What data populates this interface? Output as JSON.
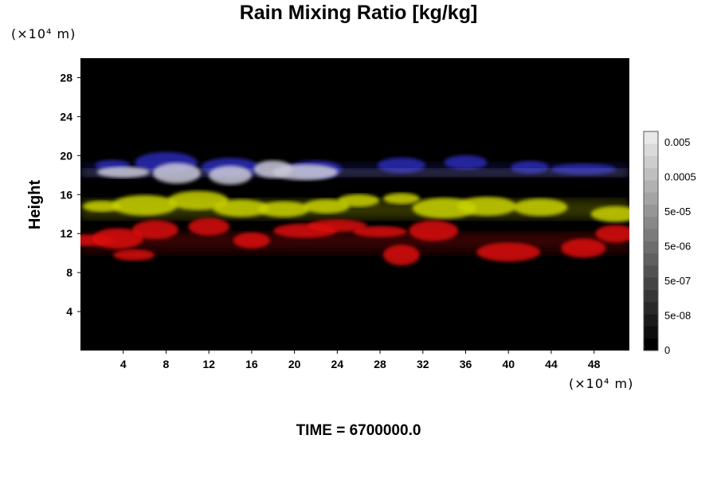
{
  "chart_data": {
    "type": "heatmap",
    "title": "Rain Mixing Ratio [kg/kg]",
    "ylabel": "Height",
    "xlabel": "",
    "x_unit_note": "(×10⁴ m)",
    "y_unit_note": "(×10⁴ m)",
    "xlim": [
      0,
      51.3
    ],
    "ylim": [
      0,
      30
    ],
    "x_ticks": [
      "4",
      "8",
      "12",
      "16",
      "20",
      "24",
      "28",
      "32",
      "36",
      "40",
      "44",
      "48"
    ],
    "y_ticks": [
      "4",
      "8",
      "12",
      "16",
      "20",
      "24",
      "28"
    ],
    "colorbar": {
      "labels": [
        "0.005",
        "0.0005",
        "5e-05",
        "5e-06",
        "5e-07",
        "5e-08",
        "0"
      ],
      "steps": 18
    },
    "layers": [
      {
        "color": "#2a2ab4",
        "band": [
          17,
          20
        ],
        "patches": [
          [
            3,
            19
          ],
          [
            8,
            19.3
          ],
          [
            14,
            18.8
          ],
          [
            22,
            18.6
          ],
          [
            30,
            19
          ],
          [
            36,
            19.3
          ],
          [
            42,
            18.8
          ],
          [
            47,
            18.6
          ]
        ]
      },
      {
        "color": "#c8c8d8",
        "band": [
          17.5,
          19
        ],
        "patches": [
          [
            4,
            18.3
          ],
          [
            9,
            18.2
          ],
          [
            14,
            18
          ],
          [
            18,
            18.6
          ],
          [
            21,
            18.3
          ]
        ]
      },
      {
        "color": "#c9d200",
        "band": [
          12.5,
          16.5
        ],
        "patches": [
          [
            2,
            14.8
          ],
          [
            6,
            14.9
          ],
          [
            11,
            15.4
          ],
          [
            15,
            14.6
          ],
          [
            19,
            14.5
          ],
          [
            23,
            14.8
          ],
          [
            26,
            15.4
          ],
          [
            30,
            15.6
          ],
          [
            34,
            14.6
          ],
          [
            38,
            14.8
          ],
          [
            43,
            14.7
          ],
          [
            50,
            14
          ]
        ]
      },
      {
        "color": "#dd1010",
        "band": [
          9.5,
          13
        ],
        "patches": [
          [
            0.5,
            11.3
          ],
          [
            3.5,
            11.5
          ],
          [
            7,
            12.4
          ],
          [
            12,
            12.7
          ],
          [
            16,
            11.3
          ],
          [
            21,
            12.3
          ],
          [
            24,
            12.8
          ],
          [
            28,
            12.2
          ],
          [
            33,
            12.3
          ],
          [
            47,
            10.5
          ],
          [
            50,
            12
          ]
        ]
      },
      {
        "color": "#dd1010",
        "band": [
          9.5,
          10.5
        ],
        "patches": [
          [
            5,
            9.8
          ],
          [
            30,
            9.8
          ],
          [
            40,
            10.1
          ]
        ]
      }
    ]
  },
  "time_label": "TIME = 6700000.0"
}
